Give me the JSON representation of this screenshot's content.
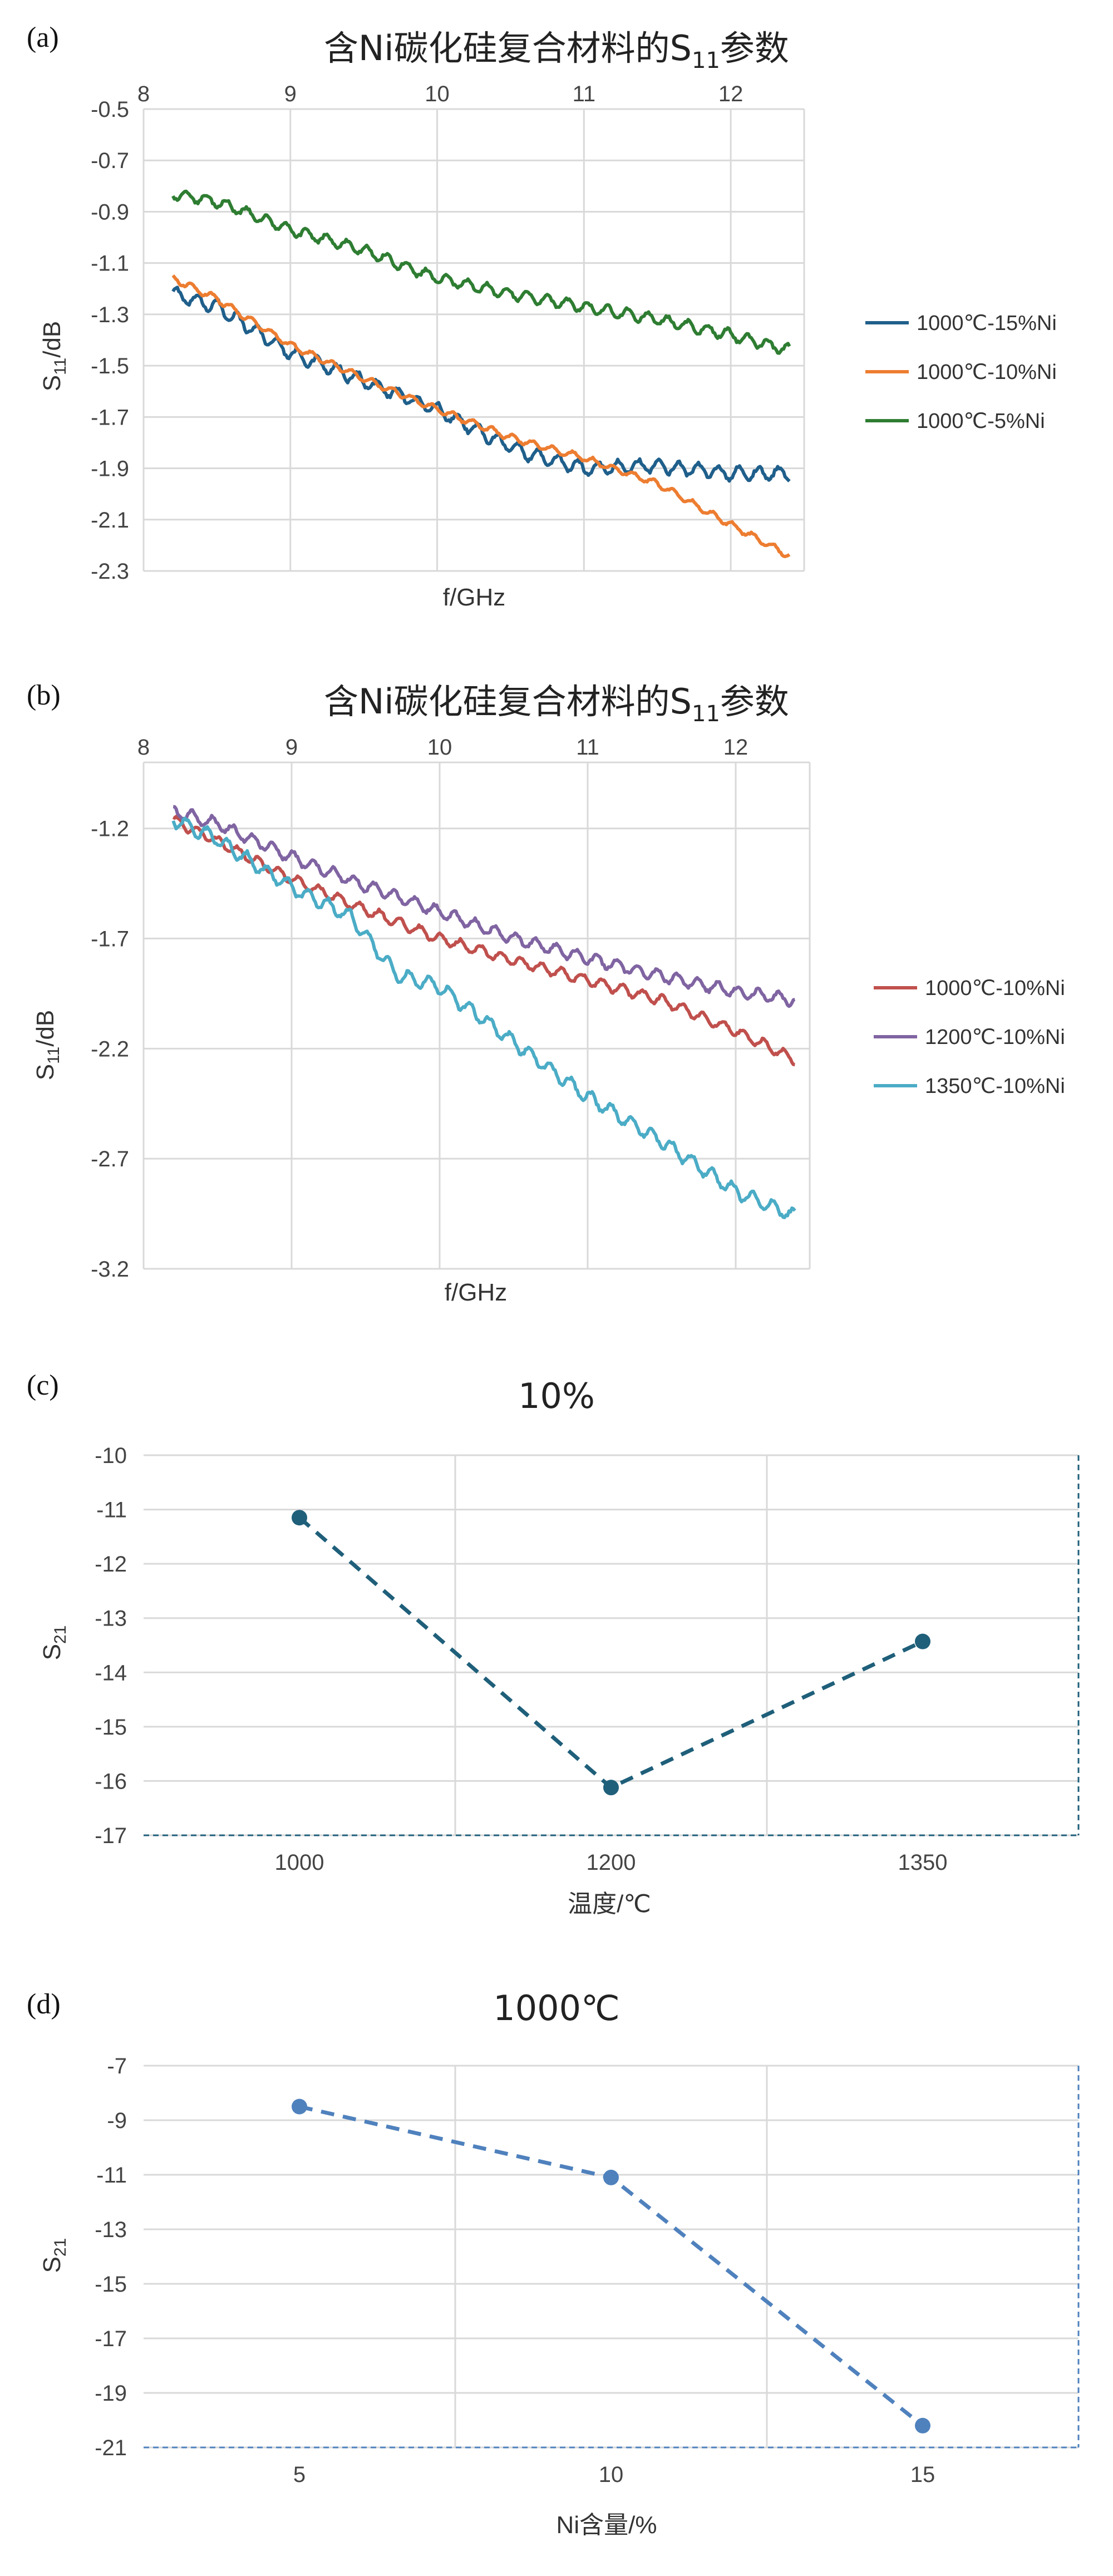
{
  "chart_data": [
    {
      "panel": "(a)",
      "type": "line",
      "title": "含Ni碳化硅复合材料的S11参数",
      "xlabel": "f/GHz",
      "ylabel": "S11/dB",
      "xlim": [
        8,
        12.5
      ],
      "xticks": [
        "8",
        "9",
        "10",
        "11",
        "12"
      ],
      "xtick_values": [
        8,
        9,
        10,
        11,
        12
      ],
      "ylim": [
        -2.3,
        -0.5
      ],
      "yticks": [
        "-0.5",
        "-0.7",
        "-0.9",
        "-1.1",
        "-1.3",
        "-1.5",
        "-1.7",
        "-1.9",
        "-2.1",
        "-2.3"
      ],
      "ytick_values": [
        -0.5,
        -0.7,
        -0.9,
        -1.1,
        -1.3,
        -1.5,
        -1.7,
        -1.9,
        -2.1,
        -2.3
      ],
      "x_axis_at": "top",
      "legend_position": "right",
      "series": [
        {
          "name": "1000℃-15%Ni",
          "color": "#1f5f8b",
          "ripple": 0.025,
          "x": [
            8.2,
            8.5,
            9.0,
            9.5,
            10.0,
            10.3,
            10.6,
            11.0,
            11.5,
            12.0,
            12.4
          ],
          "values": [
            -1.22,
            -1.27,
            -1.45,
            -1.56,
            -1.67,
            -1.76,
            -1.84,
            -1.9,
            -1.89,
            -1.92,
            -1.92
          ]
        },
        {
          "name": "1000℃-10%Ni",
          "color": "#ed7d31",
          "ripple": 0.012,
          "x": [
            8.2,
            8.5,
            9.0,
            9.5,
            10.0,
            10.5,
            11.0,
            11.5,
            12.0,
            12.4
          ],
          "values": [
            -1.16,
            -1.24,
            -1.42,
            -1.55,
            -1.67,
            -1.78,
            -1.86,
            -1.96,
            -2.12,
            -2.24
          ]
        },
        {
          "name": "1000℃-5%Ni",
          "color": "#2e7d32",
          "ripple": 0.02,
          "x": [
            8.2,
            8.5,
            9.0,
            9.5,
            10.0,
            10.5,
            11.0,
            11.5,
            12.0,
            12.4
          ],
          "values": [
            -0.83,
            -0.86,
            -0.97,
            -1.05,
            -1.16,
            -1.22,
            -1.27,
            -1.32,
            -1.38,
            -1.44
          ]
        }
      ]
    },
    {
      "panel": "(b)",
      "type": "line",
      "title": "含Ni碳化硅复合材料的S11参数",
      "xlabel": "f/GHz",
      "ylabel": "S11/dB",
      "xlim": [
        8,
        12.5
      ],
      "xticks": [
        "8",
        "9",
        "10",
        "11",
        "12"
      ],
      "xtick_values": [
        8,
        9,
        10,
        11,
        12
      ],
      "ylim": [
        -3.2,
        -0.9
      ],
      "yticks": [
        "-1.2",
        "-1.7",
        "-2.2",
        "-2.7",
        "-3.2"
      ],
      "ytick_values": [
        -1.2,
        -1.7,
        -2.2,
        -2.7,
        -3.2
      ],
      "x_axis_at": "top",
      "legend_position": "right",
      "series": [
        {
          "name": "1000℃-10%Ni",
          "color": "#c0504d",
          "ripple": 0.022,
          "x": [
            8.2,
            8.5,
            9.0,
            9.5,
            10.0,
            10.5,
            11.0,
            11.5,
            12.0,
            12.4
          ],
          "values": [
            -1.16,
            -1.26,
            -1.43,
            -1.57,
            -1.7,
            -1.8,
            -1.89,
            -1.98,
            -2.12,
            -2.25
          ]
        },
        {
          "name": "1200℃-10%Ni",
          "color": "#8064a2",
          "ripple": 0.025,
          "x": [
            8.2,
            8.5,
            9.0,
            9.5,
            10.0,
            10.5,
            11.0,
            11.5,
            12.0,
            12.4
          ],
          "values": [
            -1.12,
            -1.18,
            -1.33,
            -1.46,
            -1.58,
            -1.7,
            -1.79,
            -1.87,
            -1.94,
            -1.98
          ]
        },
        {
          "name": "1350℃-10%Ni",
          "color": "#4bacc6",
          "ripple": 0.03,
          "x": [
            8.2,
            8.5,
            9.0,
            9.4,
            9.7,
            10.0,
            10.5,
            11.0,
            11.5,
            12.0,
            12.4
          ],
          "values": [
            -1.16,
            -1.25,
            -1.47,
            -1.6,
            -1.86,
            -1.92,
            -2.17,
            -2.42,
            -2.62,
            -2.85,
            -2.96
          ]
        }
      ]
    },
    {
      "panel": "(c)",
      "type": "line",
      "title": "10%",
      "xlabel": "温度/℃",
      "ylabel": "S21",
      "categories": [
        "1000",
        "1200",
        "1350"
      ],
      "ylim": [
        -17,
        -10
      ],
      "yticks": [
        "-10",
        "-11",
        "-12",
        "-13",
        "-14",
        "-15",
        "-16",
        "-17"
      ],
      "ytick_values": [
        -10,
        -11,
        -12,
        -13,
        -14,
        -15,
        -16,
        -17
      ],
      "series": [
        {
          "name": "10%",
          "color": "#1f5f7a",
          "values": [
            -11.15,
            -16.12,
            -13.43
          ]
        }
      ]
    },
    {
      "panel": "(d)",
      "type": "line",
      "title": "1000℃",
      "xlabel": "Ni含量/%",
      "ylabel": "S21",
      "categories": [
        "5",
        "10",
        "15"
      ],
      "ylim": [
        -21,
        -7
      ],
      "yticks": [
        "-7",
        "-9",
        "-11",
        "-13",
        "-15",
        "-17",
        "-19",
        "-21"
      ],
      "ytick_values": [
        -7,
        -9,
        -11,
        -13,
        -15,
        -17,
        -19,
        -21
      ],
      "series": [
        {
          "name": "1000℃",
          "color": "#4f81bd",
          "values": [
            -8.5,
            -11.1,
            -20.2
          ]
        }
      ]
    }
  ]
}
